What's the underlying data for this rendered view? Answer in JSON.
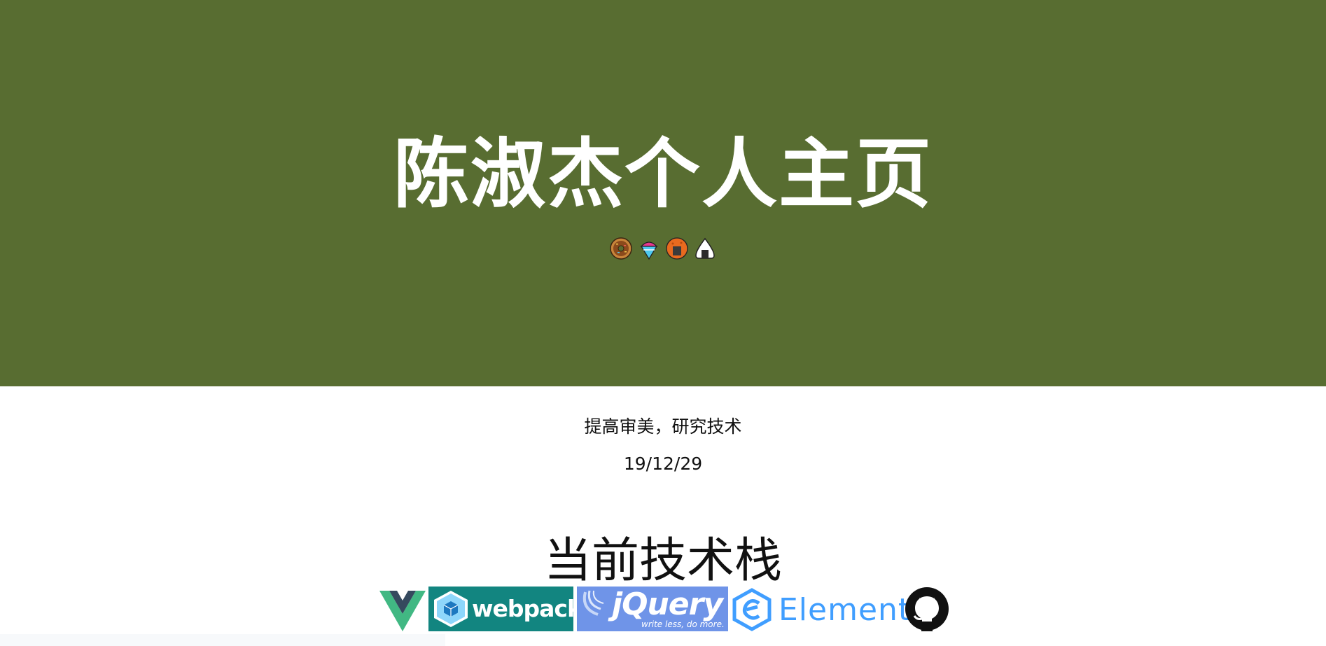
{
  "hero": {
    "title": "陈淑杰个人主页",
    "background_color": "#586d31",
    "emojis": [
      "doughnut-emoji",
      "shaved-ice-emoji",
      "senbei-emoji",
      "rice-ball-emoji"
    ]
  },
  "intro": {
    "subtitle": "提高审美，研究技术",
    "date": "19/12/29"
  },
  "stack": {
    "title": "当前技术栈",
    "logos": [
      {
        "name": "Vue",
        "icon": "vue-logo"
      },
      {
        "name": "webpack",
        "icon": "webpack-logo",
        "color": "#128580"
      },
      {
        "name": "jQuery",
        "tagline": "write less, do more.",
        "icon": "jquery-logo",
        "color": "#6f94e8"
      },
      {
        "name": "Element",
        "icon": "element-logo",
        "color": "#409eff"
      },
      {
        "name": "GitHub",
        "icon": "github-logo"
      }
    ]
  }
}
